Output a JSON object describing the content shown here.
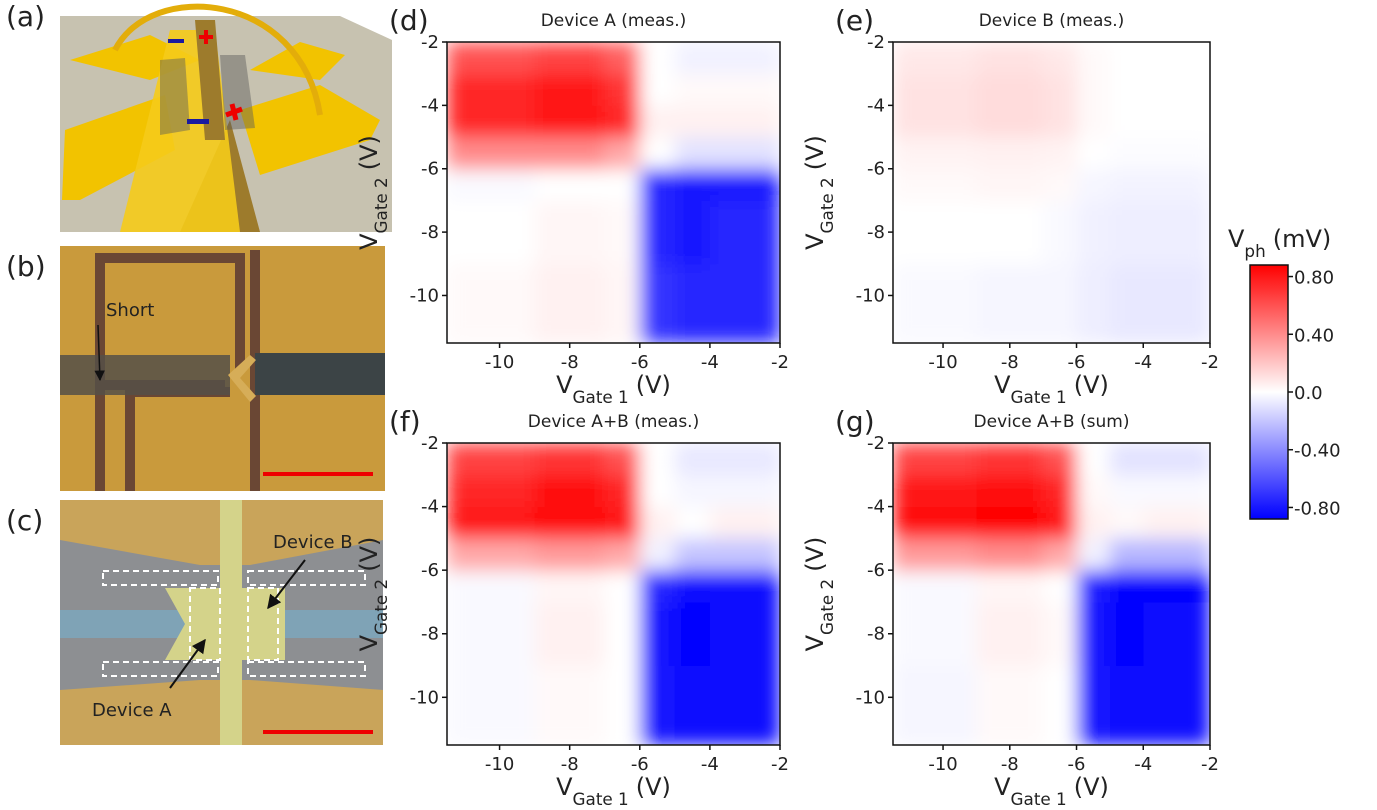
{
  "chart_data": [
    {
      "type": "heatmap",
      "panel": "(d)",
      "title": "Device A (meas.)",
      "x_label": {
        "main": "V",
        "sub": "Gate 1",
        "unit": "(V)"
      },
      "y_label": {
        "main": "V",
        "sub": "Gate 2",
        "unit": "(V)"
      },
      "xlim": [
        -11.5,
        -2
      ],
      "ylim": [
        -11.5,
        -2
      ],
      "xticks": [
        -10,
        -8,
        -6,
        -4,
        -2
      ],
      "yticks": [
        -10,
        -8,
        -6,
        -4,
        -2
      ],
      "x_edges": [
        -11.5,
        -9,
        -7,
        -6,
        -5,
        -4,
        -2
      ],
      "y_edges": [
        -11.5,
        -9,
        -7,
        -6,
        -5,
        -4,
        -3,
        -2
      ],
      "z": [
        [
          0.02,
          0.05,
          0.03,
          -0.7,
          -0.75,
          -0.75
        ],
        [
          0.0,
          0.03,
          0.02,
          -0.75,
          -0.8,
          -0.75
        ],
        [
          -0.02,
          0.0,
          0.0,
          -0.75,
          -0.8,
          -0.8
        ],
        [
          0.4,
          0.4,
          0.3,
          0.0,
          -0.1,
          -0.1
        ],
        [
          0.75,
          0.8,
          0.75,
          0.05,
          0.05,
          0.05
        ],
        [
          0.75,
          0.8,
          0.7,
          0.0,
          0.02,
          0.02
        ],
        [
          0.6,
          0.65,
          0.55,
          0.0,
          -0.05,
          -0.05
        ]
      ]
    },
    {
      "type": "heatmap",
      "panel": "(e)",
      "title": "Device B (meas.)",
      "x_label": {
        "main": "V",
        "sub": "Gate 1",
        "unit": "(V)"
      },
      "y_label": {
        "main": "V",
        "sub": "Gate 2",
        "unit": "(V)"
      },
      "xlim": [
        -11.5,
        -2
      ],
      "ylim": [
        -11.5,
        -2
      ],
      "xticks": [
        -10,
        -8,
        -6,
        -4,
        -2
      ],
      "yticks": [
        -10,
        -8,
        -6,
        -4,
        -2
      ],
      "x_edges": [
        -11.5,
        -9,
        -7,
        -6,
        -5,
        -4,
        -2
      ],
      "y_edges": [
        -11.5,
        -9,
        -7,
        -6,
        -5,
        -4,
        -3,
        -2
      ],
      "z": [
        [
          -0.02,
          -0.03,
          -0.03,
          -0.06,
          -0.08,
          -0.08
        ],
        [
          0.0,
          0.0,
          -0.02,
          -0.05,
          -0.06,
          -0.06
        ],
        [
          0.02,
          0.03,
          0.02,
          -0.03,
          -0.04,
          -0.04
        ],
        [
          0.04,
          0.05,
          0.04,
          0.0,
          -0.01,
          -0.01
        ],
        [
          0.1,
          0.12,
          0.1,
          0.02,
          0.0,
          0.0
        ],
        [
          0.1,
          0.12,
          0.1,
          0.02,
          0.0,
          0.0
        ],
        [
          0.08,
          0.1,
          0.08,
          0.02,
          0.0,
          0.0
        ]
      ]
    },
    {
      "type": "heatmap",
      "panel": "(f)",
      "title": "Device A+B (meas.)",
      "x_label": {
        "main": "V",
        "sub": "Gate 1",
        "unit": "(V)"
      },
      "y_label": {
        "main": "V",
        "sub": "Gate 2",
        "unit": "(V)"
      },
      "xlim": [
        -11.5,
        -2
      ],
      "ylim": [
        -11.5,
        -2
      ],
      "xticks": [
        -10,
        -8,
        -6,
        -4,
        -2
      ],
      "yticks": [
        -10,
        -8,
        -6,
        -4,
        -2
      ],
      "x_edges": [
        -11.5,
        -9,
        -7,
        -6,
        -5,
        -4,
        -2
      ],
      "y_edges": [
        -11.5,
        -9,
        -7,
        -6,
        -5,
        -4,
        -3,
        -2
      ],
      "z": [
        [
          -0.02,
          0.02,
          0.0,
          -0.8,
          -0.85,
          -0.85
        ],
        [
          -0.02,
          0.05,
          0.0,
          -0.8,
          -0.88,
          -0.85
        ],
        [
          -0.02,
          0.03,
          0.0,
          -0.75,
          -0.85,
          -0.85
        ],
        [
          0.3,
          0.35,
          0.3,
          -0.05,
          -0.2,
          -0.2
        ],
        [
          0.8,
          0.85,
          0.8,
          0.05,
          0.0,
          0.05
        ],
        [
          0.75,
          0.85,
          0.75,
          0.0,
          -0.03,
          -0.03
        ],
        [
          0.65,
          0.7,
          0.6,
          0.0,
          -0.08,
          -0.08
        ]
      ]
    },
    {
      "type": "heatmap",
      "panel": "(g)",
      "title": "Device A+B (sum)",
      "x_label": {
        "main": "V",
        "sub": "Gate 1",
        "unit": "(V)"
      },
      "y_label": {
        "main": "V",
        "sub": "Gate 2",
        "unit": "(V)"
      },
      "xlim": [
        -11.5,
        -2
      ],
      "ylim": [
        -11.5,
        -2
      ],
      "xticks": [
        -10,
        -8,
        -6,
        -4,
        -2
      ],
      "yticks": [
        -10,
        -8,
        -6,
        -4,
        -2
      ],
      "x_edges": [
        -11.5,
        -9,
        -7,
        -6,
        -5,
        -4,
        -2
      ],
      "y_edges": [
        -11.5,
        -9,
        -7,
        -6,
        -5,
        -4,
        -3,
        -2
      ],
      "z": [
        [
          -0.03,
          0.02,
          0.0,
          -0.8,
          -0.85,
          -0.85
        ],
        [
          -0.02,
          0.05,
          0.02,
          -0.8,
          -0.88,
          -0.85
        ],
        [
          -0.02,
          0.03,
          0.0,
          -0.78,
          -0.86,
          -0.86
        ],
        [
          0.35,
          0.4,
          0.3,
          -0.05,
          -0.25,
          -0.25
        ],
        [
          0.85,
          0.88,
          0.8,
          0.05,
          0.02,
          0.05
        ],
        [
          0.8,
          0.85,
          0.75,
          0.02,
          -0.02,
          -0.02
        ],
        [
          0.65,
          0.7,
          0.6,
          0.0,
          -0.1,
          -0.1
        ]
      ]
    }
  ],
  "colorbar": {
    "title": {
      "main": "V",
      "sub": "ph",
      "unit": "(mV)"
    },
    "clim": [
      -0.88,
      0.88
    ],
    "ticks": [
      {
        "value": 0.8,
        "label": "0.80"
      },
      {
        "value": 0.4,
        "label": "0.40"
      },
      {
        "value": 0,
        "label": "0.0"
      },
      {
        "value": -0.4,
        "label": "-0.40"
      },
      {
        "value": -0.8,
        "label": "-0.80"
      }
    ]
  },
  "images": [
    {
      "panel": "(a)"
    },
    {
      "panel": "(b)",
      "labels": [
        "Short"
      ]
    },
    {
      "panel": "(c)",
      "labels": [
        "Device B",
        "Device A"
      ]
    }
  ]
}
